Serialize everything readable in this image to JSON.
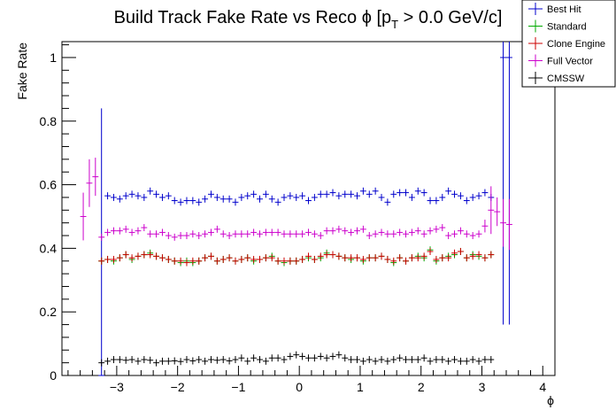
{
  "chart_data": {
    "type": "scatter",
    "title_main": "Build Track Fake Rate vs Reco ",
    "title_phi": "ϕ",
    "title_bracket": " [p",
    "title_sub": "T",
    "title_rest": " > 0.0 GeV/c]",
    "xlabel": "ϕ",
    "ylabel": "Fake Rate",
    "xlim": [
      -3.9,
      4.2
    ],
    "ylim": [
      0,
      1.05
    ],
    "x_ticks": [
      -3,
      -2,
      -1,
      0,
      1,
      2,
      3,
      4
    ],
    "x_tick_labels": [
      "−3",
      "−2",
      "−1",
      "0",
      "1",
      "2",
      "3",
      "4"
    ],
    "y_ticks": [
      0,
      0.2,
      0.4,
      0.6,
      0.8,
      1
    ],
    "y_tick_labels": [
      "0",
      "0.2",
      "0.4",
      "0.6",
      "0.8",
      "1"
    ],
    "bin_width": 0.1,
    "grid": false,
    "legend_position": "top-right",
    "series": [
      {
        "name": "Best Hit",
        "color": "#0000cc",
        "x": [
          -3.25,
          -3.15,
          -3.05,
          -2.95,
          -2.85,
          -2.75,
          -2.65,
          -2.55,
          -2.45,
          -2.35,
          -2.25,
          -2.15,
          -2.05,
          -1.95,
          -1.85,
          -1.75,
          -1.65,
          -1.55,
          -1.45,
          -1.35,
          -1.25,
          -1.15,
          -1.05,
          -0.95,
          -0.85,
          -0.75,
          -0.65,
          -0.55,
          -0.45,
          -0.35,
          -0.25,
          -0.15,
          -0.05,
          0.05,
          0.15,
          0.25,
          0.35,
          0.45,
          0.55,
          0.65,
          0.75,
          0.85,
          0.95,
          1.05,
          1.15,
          1.25,
          1.35,
          1.45,
          1.55,
          1.65,
          1.75,
          1.85,
          1.95,
          2.05,
          2.15,
          2.25,
          2.35,
          2.45,
          2.55,
          2.65,
          2.75,
          2.85,
          2.95,
          3.05,
          3.15,
          3.35,
          3.45
        ],
        "y": [
          0,
          0.565,
          0.56,
          0.555,
          0.565,
          0.57,
          0.565,
          0.56,
          0.58,
          0.57,
          0.56,
          0.565,
          0.55,
          0.545,
          0.55,
          0.55,
          0.545,
          0.555,
          0.57,
          0.56,
          0.555,
          0.555,
          0.545,
          0.56,
          0.565,
          0.57,
          0.555,
          0.57,
          0.555,
          0.545,
          0.56,
          0.565,
          0.56,
          0.565,
          0.55,
          0.56,
          0.57,
          0.57,
          0.575,
          0.565,
          0.57,
          0.57,
          0.565,
          0.58,
          0.57,
          0.58,
          0.56,
          0.545,
          0.57,
          0.575,
          0.575,
          0.56,
          0.58,
          0.575,
          0.55,
          0.55,
          0.56,
          0.58,
          0.57,
          0.565,
          0.55,
          0.56,
          0.565,
          0.575,
          0.56,
          1,
          1
        ],
        "err": [
          0.84,
          0,
          0,
          0,
          0,
          0,
          0,
          0,
          0,
          0,
          0,
          0,
          0,
          0,
          0,
          0,
          0,
          0,
          0,
          0,
          0,
          0,
          0,
          0,
          0,
          0,
          0,
          0,
          0,
          0,
          0,
          0,
          0,
          0,
          0,
          0,
          0,
          0,
          0,
          0,
          0,
          0,
          0,
          0,
          0,
          0,
          0,
          0,
          0,
          0,
          0,
          0,
          0,
          0,
          0,
          0,
          0,
          0,
          0,
          0,
          0,
          0,
          0,
          0,
          0,
          0.84,
          0.84
        ]
      },
      {
        "name": "Standard",
        "color": "#00aa00",
        "x": [
          -3.25,
          -3.15,
          -3.05,
          -2.95,
          -2.85,
          -2.75,
          -2.65,
          -2.55,
          -2.45,
          -2.35,
          -2.25,
          -2.15,
          -2.05,
          -1.95,
          -1.85,
          -1.75,
          -1.65,
          -1.55,
          -1.45,
          -1.35,
          -1.25,
          -1.15,
          -1.05,
          -0.95,
          -0.85,
          -0.75,
          -0.65,
          -0.55,
          -0.45,
          -0.35,
          -0.25,
          -0.15,
          -0.05,
          0.05,
          0.15,
          0.25,
          0.35,
          0.45,
          0.55,
          0.65,
          0.75,
          0.85,
          0.95,
          1.05,
          1.15,
          1.25,
          1.35,
          1.45,
          1.55,
          1.65,
          1.75,
          1.85,
          1.95,
          2.05,
          2.15,
          2.25,
          2.35,
          2.45,
          2.55,
          2.65,
          2.75,
          2.85,
          2.95,
          3.05,
          3.15
        ],
        "y": [
          0.36,
          0.365,
          0.36,
          0.37,
          0.38,
          0.365,
          0.375,
          0.38,
          0.385,
          0.375,
          0.37,
          0.365,
          0.36,
          0.355,
          0.36,
          0.355,
          0.36,
          0.37,
          0.375,
          0.36,
          0.365,
          0.37,
          0.36,
          0.365,
          0.37,
          0.36,
          0.365,
          0.37,
          0.375,
          0.36,
          0.355,
          0.36,
          0.36,
          0.365,
          0.37,
          0.365,
          0.37,
          0.385,
          0.38,
          0.375,
          0.37,
          0.365,
          0.37,
          0.36,
          0.37,
          0.37,
          0.375,
          0.365,
          0.355,
          0.37,
          0.36,
          0.37,
          0.375,
          0.37,
          0.395,
          0.36,
          0.37,
          0.375,
          0.38,
          0.39,
          0.37,
          0.38,
          0.375,
          0.37,
          0.38
        ],
        "err": [
          0,
          0,
          0,
          0,
          0,
          0,
          0,
          0,
          0,
          0,
          0,
          0,
          0,
          0,
          0,
          0,
          0,
          0,
          0,
          0,
          0,
          0,
          0,
          0,
          0,
          0,
          0,
          0,
          0,
          0,
          0,
          0,
          0,
          0,
          0,
          0,
          0,
          0,
          0,
          0,
          0,
          0,
          0,
          0,
          0,
          0,
          0,
          0,
          0,
          0,
          0,
          0,
          0,
          0,
          0,
          0,
          0,
          0,
          0,
          0,
          0,
          0,
          0,
          0,
          0
        ]
      },
      {
        "name": "Clone Engine",
        "color": "#cc0000",
        "x": [
          -3.25,
          -3.15,
          -3.05,
          -2.95,
          -2.85,
          -2.75,
          -2.65,
          -2.55,
          -2.45,
          -2.35,
          -2.25,
          -2.15,
          -2.05,
          -1.95,
          -1.85,
          -1.75,
          -1.65,
          -1.55,
          -1.45,
          -1.35,
          -1.25,
          -1.15,
          -1.05,
          -0.95,
          -0.85,
          -0.75,
          -0.65,
          -0.55,
          -0.45,
          -0.35,
          -0.25,
          -0.15,
          -0.05,
          0.05,
          0.15,
          0.25,
          0.35,
          0.45,
          0.55,
          0.65,
          0.75,
          0.85,
          0.95,
          1.05,
          1.15,
          1.25,
          1.35,
          1.45,
          1.55,
          1.65,
          1.75,
          1.85,
          1.95,
          2.05,
          2.15,
          2.25,
          2.35,
          2.45,
          2.55,
          2.65,
          2.75,
          2.85,
          2.95,
          3.05,
          3.15
        ],
        "y": [
          0.36,
          0.365,
          0.365,
          0.37,
          0.38,
          0.37,
          0.375,
          0.38,
          0.38,
          0.375,
          0.37,
          0.365,
          0.36,
          0.36,
          0.355,
          0.36,
          0.36,
          0.37,
          0.375,
          0.36,
          0.365,
          0.37,
          0.36,
          0.365,
          0.37,
          0.365,
          0.365,
          0.37,
          0.37,
          0.36,
          0.36,
          0.36,
          0.36,
          0.365,
          0.375,
          0.365,
          0.375,
          0.38,
          0.38,
          0.375,
          0.37,
          0.37,
          0.37,
          0.365,
          0.37,
          0.37,
          0.375,
          0.365,
          0.36,
          0.37,
          0.36,
          0.37,
          0.37,
          0.375,
          0.39,
          0.365,
          0.37,
          0.37,
          0.385,
          0.39,
          0.37,
          0.375,
          0.38,
          0.37,
          0.38
        ],
        "err": [
          0,
          0,
          0,
          0,
          0,
          0,
          0,
          0,
          0,
          0,
          0,
          0,
          0,
          0,
          0,
          0,
          0,
          0,
          0,
          0,
          0,
          0,
          0,
          0,
          0,
          0,
          0,
          0,
          0,
          0,
          0,
          0,
          0,
          0,
          0,
          0,
          0,
          0,
          0,
          0,
          0,
          0,
          0,
          0,
          0,
          0,
          0,
          0,
          0,
          0,
          0,
          0,
          0,
          0,
          0,
          0,
          0,
          0,
          0,
          0,
          0,
          0,
          0,
          0,
          0
        ]
      },
      {
        "name": "Full Vector",
        "color": "#cc00cc",
        "x": [
          -3.55,
          -3.45,
          -3.35,
          -3.25,
          -3.15,
          -3.05,
          -2.95,
          -2.85,
          -2.75,
          -2.65,
          -2.55,
          -2.45,
          -2.35,
          -2.25,
          -2.15,
          -2.05,
          -1.95,
          -1.85,
          -1.75,
          -1.65,
          -1.55,
          -1.45,
          -1.35,
          -1.25,
          -1.15,
          -1.05,
          -0.95,
          -0.85,
          -0.75,
          -0.65,
          -0.55,
          -0.45,
          -0.35,
          -0.25,
          -0.15,
          -0.05,
          0.05,
          0.15,
          0.25,
          0.35,
          0.45,
          0.55,
          0.65,
          0.75,
          0.85,
          0.95,
          1.05,
          1.15,
          1.25,
          1.35,
          1.45,
          1.55,
          1.65,
          1.75,
          1.85,
          1.95,
          2.05,
          2.15,
          2.25,
          2.35,
          2.45,
          2.55,
          2.65,
          2.75,
          2.85,
          2.95,
          3.05,
          3.15,
          3.25,
          3.35,
          3.45
        ],
        "y": [
          0.5,
          0.605,
          0.625,
          0.435,
          0.45,
          0.455,
          0.455,
          0.46,
          0.45,
          0.455,
          0.465,
          0.445,
          0.445,
          0.45,
          0.44,
          0.435,
          0.44,
          0.44,
          0.445,
          0.44,
          0.445,
          0.45,
          0.46,
          0.445,
          0.44,
          0.445,
          0.445,
          0.445,
          0.45,
          0.445,
          0.45,
          0.45,
          0.45,
          0.445,
          0.445,
          0.445,
          0.445,
          0.45,
          0.445,
          0.44,
          0.455,
          0.455,
          0.46,
          0.455,
          0.45,
          0.455,
          0.46,
          0.44,
          0.445,
          0.45,
          0.445,
          0.445,
          0.45,
          0.445,
          0.45,
          0.455,
          0.445,
          0.455,
          0.46,
          0.465,
          0.44,
          0.445,
          0.455,
          0.445,
          0.44,
          0.445,
          0.47,
          0.52,
          0.515,
          0.48,
          0.475
        ],
        "err": [
          0.075,
          0.075,
          0.06,
          0,
          0,
          0,
          0,
          0,
          0,
          0,
          0,
          0,
          0,
          0,
          0,
          0,
          0,
          0,
          0,
          0,
          0,
          0,
          0,
          0,
          0,
          0,
          0,
          0,
          0,
          0,
          0,
          0,
          0,
          0,
          0,
          0,
          0,
          0,
          0,
          0,
          0,
          0,
          0,
          0,
          0,
          0,
          0,
          0,
          0,
          0,
          0,
          0,
          0,
          0,
          0,
          0,
          0,
          0,
          0,
          0,
          0,
          0,
          0,
          0,
          0,
          0,
          0.02,
          0.075,
          0.045,
          0.075,
          0.08
        ]
      },
      {
        "name": "CMSSW",
        "color": "#000000",
        "x": [
          -3.25,
          -3.15,
          -3.05,
          -2.95,
          -2.85,
          -2.75,
          -2.65,
          -2.55,
          -2.45,
          -2.35,
          -2.25,
          -2.15,
          -2.05,
          -1.95,
          -1.85,
          -1.75,
          -1.65,
          -1.55,
          -1.45,
          -1.35,
          -1.25,
          -1.15,
          -1.05,
          -0.95,
          -0.85,
          -0.75,
          -0.65,
          -0.55,
          -0.45,
          -0.35,
          -0.25,
          -0.15,
          -0.05,
          0.05,
          0.15,
          0.25,
          0.35,
          0.45,
          0.55,
          0.65,
          0.75,
          0.85,
          0.95,
          1.05,
          1.15,
          1.25,
          1.35,
          1.45,
          1.55,
          1.65,
          1.75,
          1.85,
          1.95,
          2.05,
          2.15,
          2.25,
          2.35,
          2.45,
          2.55,
          2.65,
          2.75,
          2.85,
          2.95,
          3.05,
          3.15
        ],
        "y": [
          0.04,
          0.045,
          0.05,
          0.05,
          0.048,
          0.05,
          0.045,
          0.05,
          0.048,
          0.04,
          0.045,
          0.045,
          0.046,
          0.044,
          0.05,
          0.046,
          0.05,
          0.045,
          0.05,
          0.048,
          0.05,
          0.046,
          0.05,
          0.055,
          0.045,
          0.055,
          0.05,
          0.045,
          0.055,
          0.055,
          0.05,
          0.06,
          0.065,
          0.06,
          0.055,
          0.055,
          0.06,
          0.055,
          0.06,
          0.065,
          0.055,
          0.05,
          0.05,
          0.045,
          0.05,
          0.045,
          0.05,
          0.045,
          0.05,
          0.055,
          0.05,
          0.05,
          0.05,
          0.055,
          0.045,
          0.05,
          0.05,
          0.045,
          0.05,
          0.045,
          0.045,
          0.05,
          0.045,
          0.05,
          0.05
        ],
        "err": [
          0,
          0,
          0,
          0,
          0,
          0,
          0,
          0,
          0,
          0,
          0,
          0,
          0,
          0,
          0,
          0,
          0,
          0,
          0,
          0,
          0,
          0,
          0,
          0,
          0,
          0,
          0,
          0,
          0,
          0,
          0,
          0,
          0,
          0,
          0,
          0,
          0,
          0,
          0,
          0,
          0,
          0,
          0,
          0,
          0,
          0,
          0,
          0,
          0,
          0,
          0,
          0,
          0,
          0,
          0,
          0,
          0,
          0,
          0,
          0,
          0,
          0,
          0,
          0,
          0
        ]
      }
    ]
  }
}
